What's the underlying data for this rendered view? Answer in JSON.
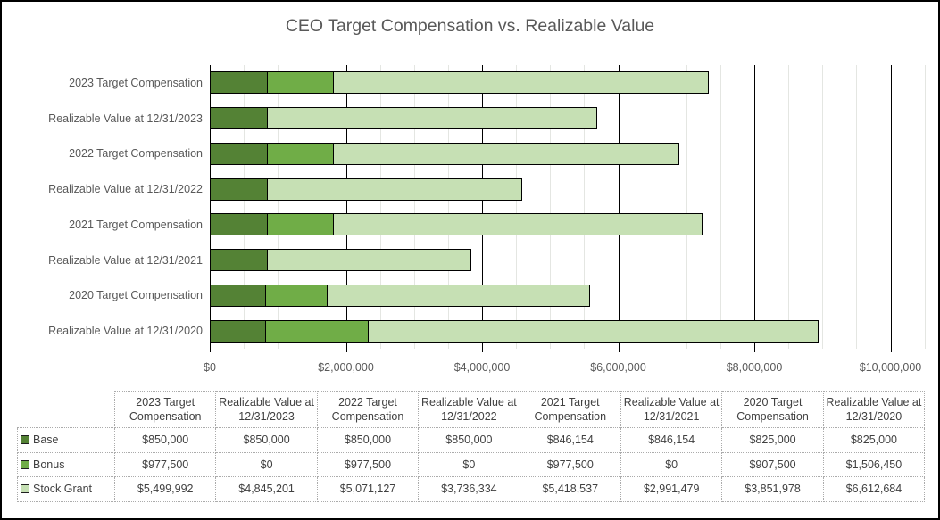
{
  "frame": {
    "background": "#ffffff",
    "border_color": "#000000"
  },
  "chart_data": {
    "type": "bar",
    "orientation": "horizontal",
    "stacked": true,
    "title": "CEO Target Compensation vs. Realizable Value",
    "categories": [
      "2023 Target Compensation",
      "Realizable Value at 12/31/2023",
      "2022 Target Compensation",
      "Realizable Value at 12/31/2022",
      "2021 Target Compensation",
      "Realizable Value at 12/31/2021",
      "2020 Target Compensation",
      "Realizable Value at 12/31/2020"
    ],
    "series": [
      {
        "name": "Base",
        "color": "#548235",
        "values": [
          850000,
          850000,
          850000,
          850000,
          846154,
          846154,
          825000,
          825000
        ]
      },
      {
        "name": "Bonus",
        "color": "#70AD47",
        "values": [
          977500,
          0,
          977500,
          0,
          977500,
          0,
          907500,
          1506450
        ]
      },
      {
        "name": "Stock Grant",
        "color": "#C6E0B4",
        "values": [
          5499992,
          4845201,
          5071127,
          3736334,
          5418537,
          2991479,
          3851978,
          6612684
        ]
      }
    ],
    "bar_border_color": "#000000",
    "x_axis": {
      "tick_labels": [
        "$0",
        "$2,000,000",
        "$4,000,000",
        "$6,000,000",
        "$8,000,000",
        "$10,000,000"
      ],
      "tick_values": [
        0,
        2000000,
        4000000,
        6000000,
        8000000,
        10000000
      ],
      "range": [
        0,
        10000000
      ],
      "major_unit": 2000000,
      "minor_unit": 500000,
      "major_gridline_color": "#000000",
      "minor_gridline_color": "#e4e6e2"
    },
    "legend_position": "data-table-keys",
    "axis_text_color": "#595959",
    "gridlines": {
      "major": true,
      "minor": true
    }
  },
  "table": {
    "corner_label": "",
    "col_headers": [
      "2023 Target Compensation",
      "Realizable Value at 12/31/2023",
      "2022 Target Compensation",
      "Realizable Value at 12/31/2022",
      "2021 Target Compensation",
      "Realizable Value at 12/31/2021",
      "2020 Target Compensation",
      "Realizable Value at 12/31/2020"
    ],
    "rows": [
      {
        "label": "Base",
        "key_color": "#548235",
        "values": [
          "$850,000",
          "$850,000",
          "$850,000",
          "$850,000",
          "$846,154",
          "$846,154",
          "$825,000",
          "$825,000"
        ]
      },
      {
        "label": "Bonus",
        "key_color": "#70AD47",
        "values": [
          "$977,500",
          "$0",
          "$977,500",
          "$0",
          "$977,500",
          "$0",
          "$907,500",
          "$1,506,450"
        ]
      },
      {
        "label": "Stock Grant",
        "key_color": "#C6E0B4",
        "values": [
          "$5,499,992",
          "$4,845,201",
          "$5,071,127",
          "$3,736,334",
          "$5,418,537",
          "$2,991,479",
          "$3,851,978",
          "$6,612,684"
        ]
      }
    ]
  }
}
